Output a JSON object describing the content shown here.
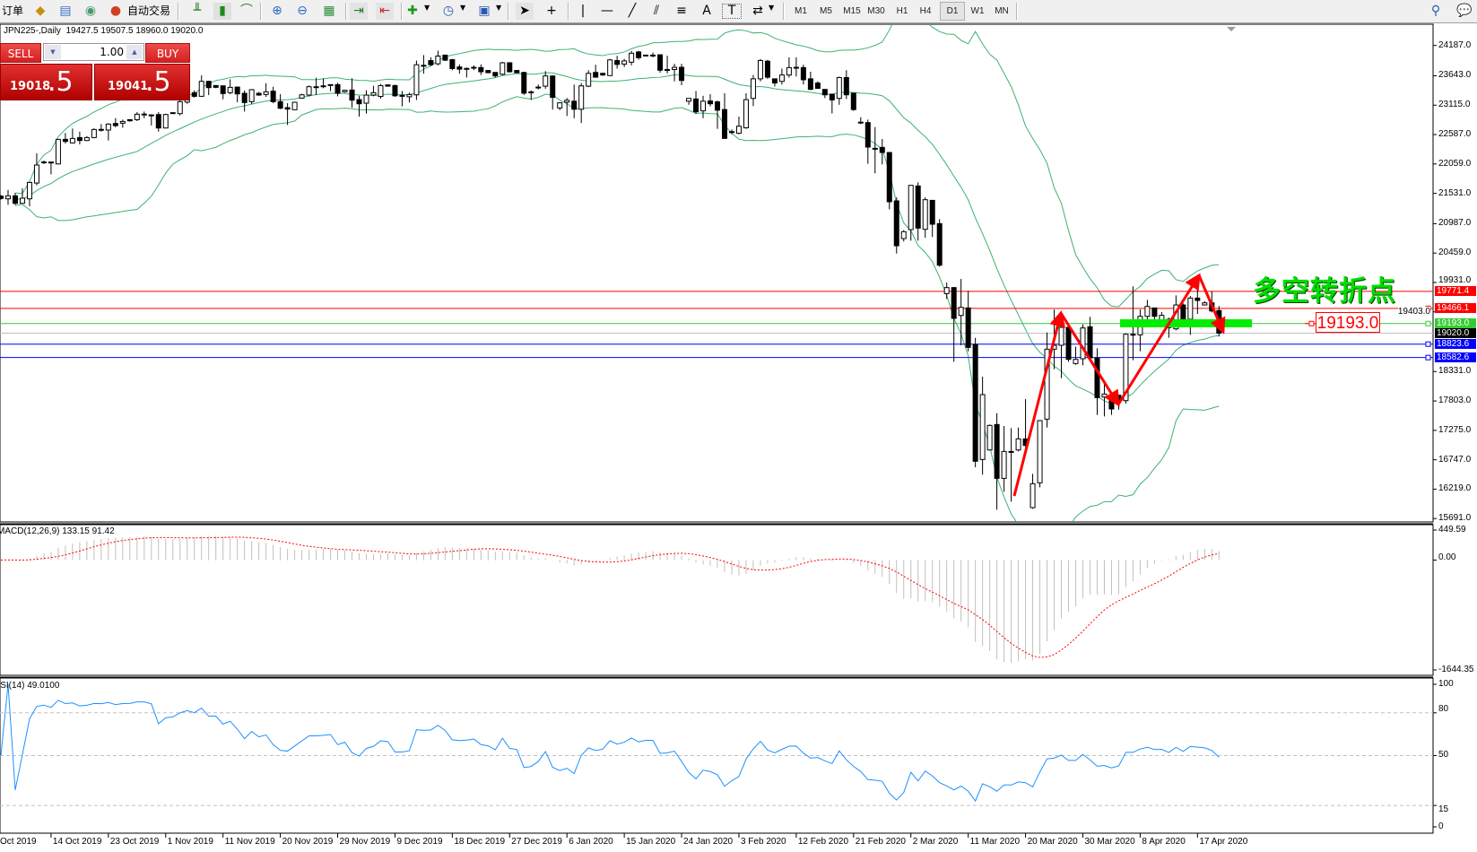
{
  "toolbar": {
    "order_label": "订单",
    "autotrade_label": "自动交易",
    "timeframes": [
      "M1",
      "M5",
      "M15",
      "M30",
      "H1",
      "H4",
      "D1",
      "W1",
      "MN"
    ],
    "active_timeframe": "D1",
    "text_tool_label": "A",
    "text_label_tool": "T"
  },
  "chart": {
    "header": "JPN225-,Daily  19427.5 19507.5 18960.0 19020.0"
  },
  "trade_panel": {
    "sell_label": "SELL",
    "buy_label": "BUY",
    "volume": "1.00",
    "sell_price_main": "19018",
    "sell_price_frac": ".5",
    "buy_price_main": "19041",
    "buy_price_frac": ".5"
  },
  "price_axis": {
    "ticks": [
      "24187.0",
      "23643.0",
      "23115.0",
      "22587.0",
      "22059.0",
      "21531.0",
      "20987.0",
      "20459.0",
      "19931.0",
      "19403.0",
      "18331.0",
      "17803.0",
      "17275.0",
      "16747.0",
      "16219.0",
      "15691.0"
    ]
  },
  "levels": [
    {
      "price": 19771.4,
      "label": "19771.4",
      "color": "#ff0000",
      "marker": false
    },
    {
      "price": 19466.1,
      "label": "19466.1",
      "color": "#ff0000",
      "marker": true
    },
    {
      "price": 19193.0,
      "label": "19193.0",
      "color": "#33cc33",
      "marker": true
    },
    {
      "price": 19020.0,
      "label": "19020.0",
      "color": "#000000",
      "line_color": "#c0c0c0",
      "marker": false
    },
    {
      "price": 18823.6,
      "label": "18823.6",
      "color": "#0000ff",
      "marker": true
    },
    {
      "price": 18582.6,
      "label": "18582.6",
      "color": "#0000ff",
      "marker": true
    }
  ],
  "annotation": {
    "text": "多空转折点",
    "price_label": "19193.0",
    "text_color": "#00dd00",
    "arrow_color": "#ff0000",
    "zone_color": "#00ee00"
  },
  "macd": {
    "label": "MACD(12,26,9) 133.15 91.42",
    "axis": [
      "449.59",
      "0.00",
      "-1644.35"
    ],
    "range": [
      -1644.35,
      449.59
    ],
    "histogram_color": "#c0c0c0",
    "signal_color": "#ff0000"
  },
  "rsi": {
    "label": "RSI(14) 49.0100",
    "axis": [
      "100",
      "80",
      "50",
      "15",
      "0"
    ],
    "levels": [
      80,
      50,
      15
    ],
    "line_color": "#1e90ff"
  },
  "chart_data": {
    "type": "candlestick",
    "symbol": "JPN225-",
    "timeframe": "Daily",
    "ylim": [
      15691.0,
      24187.0
    ],
    "bollinger_color": "#3cb371",
    "candle_format": [
      "open",
      "high",
      "low",
      "close"
    ],
    "candles": [
      [
        21480,
        21500,
        21420,
        21440
      ],
      [
        21433,
        21594,
        21325,
        21487
      ],
      [
        21487,
        21540,
        21320,
        21352
      ],
      [
        21352,
        21620,
        21352,
        21444
      ],
      [
        21433,
        21739,
        21299,
        21728
      ],
      [
        21717,
        22249,
        21675,
        22040
      ],
      [
        22090,
        22120,
        22060,
        22095
      ],
      [
        22093,
        22100,
        21873,
        22077
      ],
      [
        22060,
        22510,
        22050,
        22501
      ],
      [
        22501,
        22614,
        22426,
        22464
      ],
      [
        22437,
        22695,
        22426,
        22517
      ],
      [
        22533,
        22640,
        22410,
        22480
      ],
      [
        22480,
        22560,
        22470,
        22533
      ],
      [
        22533,
        22700,
        22520,
        22678
      ],
      [
        22680,
        22775,
        22640,
        22675
      ],
      [
        22668,
        22791,
        22480,
        22775
      ],
      [
        22786,
        22882,
        22720,
        22748
      ],
      [
        22791,
        22855,
        22710,
        22823
      ],
      [
        22855,
        22860,
        22820,
        22834
      ],
      [
        22855,
        22990,
        22829,
        22952
      ],
      [
        22950,
        23000,
        22880,
        22955
      ],
      [
        22940,
        22950,
        22750,
        22935
      ],
      [
        22947,
        22990,
        22640,
        22705
      ],
      [
        22705,
        22963,
        22695,
        22947
      ],
      [
        22980,
        22985,
        22975,
        22978
      ],
      [
        22963,
        23274,
        22930,
        23178
      ],
      [
        23170,
        23330,
        23140,
        23300
      ],
      [
        23339,
        23380,
        23250,
        23274
      ],
      [
        23274,
        23650,
        23270,
        23543
      ],
      [
        23543,
        23554,
        23296,
        23430
      ],
      [
        23468,
        23470,
        23420,
        23435
      ],
      [
        23462,
        23470,
        23220,
        23323
      ],
      [
        23339,
        23580,
        23310,
        23435
      ],
      [
        23440,
        23450,
        23167,
        23317
      ],
      [
        23328,
        23380,
        23000,
        23162
      ],
      [
        23178,
        23403,
        23135,
        23393
      ],
      [
        23328,
        23350,
        23285,
        23296
      ],
      [
        23307,
        23510,
        23264,
        23355
      ],
      [
        23366,
        23446,
        23151,
        23178
      ],
      [
        23178,
        23312,
        23044,
        23060
      ],
      [
        23070,
        23150,
        22759,
        23044
      ],
      [
        23033,
        23178,
        23028,
        23167
      ],
      [
        23242,
        23320,
        23230,
        23301
      ],
      [
        23296,
        23468,
        23274,
        23446
      ],
      [
        23440,
        23607,
        23296,
        23446
      ],
      [
        23460,
        23597,
        23419,
        23462
      ],
      [
        23484,
        23484,
        23366,
        23482
      ],
      [
        23484,
        23516,
        23274,
        23328
      ],
      [
        23355,
        23390,
        23340,
        23382
      ],
      [
        23387,
        23597,
        23070,
        23205
      ],
      [
        23215,
        23285,
        22909,
        23140
      ],
      [
        23151,
        23382,
        22963,
        23296
      ],
      [
        23296,
        23462,
        23274,
        23339
      ],
      [
        23272,
        23496,
        23232,
        23467
      ],
      [
        23479,
        23485,
        23450,
        23456
      ],
      [
        23467,
        23484,
        23266,
        23283
      ],
      [
        23290,
        23370,
        23094,
        23283
      ],
      [
        23266,
        23341,
        23163,
        23306
      ],
      [
        23300,
        23916,
        23209,
        23841
      ],
      [
        23830,
        24014,
        23680,
        23830
      ],
      [
        23916,
        23974,
        23818,
        23841
      ],
      [
        23858,
        24094,
        23830,
        23997
      ],
      [
        24014,
        24020,
        23910,
        23922
      ],
      [
        23933,
        23945,
        23743,
        23772
      ],
      [
        23801,
        23847,
        23680,
        23761
      ],
      [
        23775,
        23790,
        23611,
        23772
      ],
      [
        23795,
        23830,
        23743,
        23795
      ],
      [
        23790,
        23847,
        23657,
        23715
      ],
      [
        23738,
        23745,
        23690,
        23698
      ],
      [
        23703,
        23703,
        23611,
        23640
      ],
      [
        23669,
        23893,
        23650,
        23876
      ],
      [
        23876,
        23888,
        23700,
        23715
      ],
      [
        23738,
        23745,
        23690,
        23698
      ],
      [
        23703,
        23715,
        23300,
        23330
      ],
      [
        23353,
        23381,
        23209,
        23350
      ],
      [
        23440,
        23485,
        23398,
        23438
      ],
      [
        23456,
        23726,
        23410,
        23640
      ],
      [
        23640,
        23640,
        23036,
        23255
      ],
      [
        23065,
        23168,
        23025,
        23157
      ],
      [
        23168,
        23243,
        22921,
        23203
      ],
      [
        23186,
        23485,
        22881,
        23042
      ],
      [
        23042,
        23513,
        22795,
        23462
      ],
      [
        23456,
        23743,
        23439,
        23686
      ],
      [
        23703,
        23841,
        23611,
        23617
      ],
      [
        23686,
        23700,
        23640,
        23657
      ],
      [
        23646,
        23945,
        23640,
        23928
      ],
      [
        23916,
        24002,
        23772,
        23847
      ],
      [
        23853,
        23945,
        23801,
        23910
      ],
      [
        23887,
        24089,
        23830,
        24048
      ],
      [
        24071,
        24089,
        23933,
        23968
      ],
      [
        24014,
        24020,
        24008,
        24014
      ],
      [
        24010,
        24060,
        23974,
        24014
      ],
      [
        24020,
        24020,
        23697,
        23743
      ],
      [
        23755,
        24002,
        23686,
        23755
      ],
      [
        23755,
        23858,
        23542,
        23795
      ],
      [
        23795,
        23858,
        23473,
        23559
      ],
      [
        23186,
        23240,
        23122,
        23237
      ],
      [
        23226,
        23370,
        22956,
        22996
      ],
      [
        23013,
        23283,
        22881,
        23186
      ],
      [
        23191,
        23312,
        23094,
        23140
      ],
      [
        23174,
        23197,
        22691,
        23025
      ],
      [
        23036,
        23329,
        22518,
        22518
      ],
      [
        22638,
        22680,
        22593,
        22640
      ],
      [
        22610,
        22910,
        22593,
        22737
      ],
      [
        22708,
        23329,
        22691,
        23214
      ],
      [
        23237,
        23657,
        23099,
        23588
      ],
      [
        23588,
        23945,
        23542,
        23916
      ],
      [
        23905,
        23928,
        23588,
        23617
      ],
      [
        23588,
        23588,
        23450,
        23513
      ],
      [
        23542,
        23772,
        23485,
        23657
      ],
      [
        23657,
        23974,
        23611,
        23790
      ],
      [
        23790,
        23974,
        23629,
        23795
      ],
      [
        23790,
        23841,
        23485,
        23571
      ],
      [
        23588,
        23715,
        23387,
        23398
      ],
      [
        23513,
        23542,
        23410,
        23416
      ],
      [
        23398,
        23398,
        23243,
        23301
      ],
      [
        23312,
        23312,
        22967,
        23209
      ],
      [
        23237,
        23628,
        23122,
        23611
      ],
      [
        23611,
        23743,
        23226,
        23301
      ],
      [
        23329,
        23329,
        23013,
        23036
      ],
      [
        22810,
        22899,
        22776,
        22800
      ],
      [
        22802,
        22856,
        22062,
        22362
      ],
      [
        22340,
        22722,
        21890,
        22330
      ],
      [
        22357,
        22507,
        22051,
        22265
      ],
      [
        22265,
        22265,
        21245,
        21380
      ],
      [
        21396,
        21460,
        20451,
        20590
      ],
      [
        20719,
        20870,
        20666,
        20843
      ],
      [
        20880,
        21675,
        20682,
        21675
      ],
      [
        21664,
        21729,
        20682,
        20907
      ],
      [
        20886,
        21460,
        20735,
        21417
      ],
      [
        21406,
        21406,
        20746,
        20977
      ],
      [
        20988,
        21068,
        20214,
        20241
      ],
      [
        19731,
        19930,
        19635,
        19839
      ],
      [
        19839,
        19850,
        18507,
        19286
      ],
      [
        19339,
        19994,
        18802,
        19484
      ],
      [
        19474,
        19780,
        18695,
        18765
      ],
      [
        18819,
        18937,
        16612,
        16720
      ],
      [
        16752,
        18239,
        16478,
        17917
      ],
      [
        16923,
        17380,
        16913,
        17364
      ],
      [
        17380,
        17584,
        15850,
        16413
      ],
      [
        16413,
        17353,
        16172,
        16896
      ],
      [
        16890,
        17315,
        15995,
        16896
      ],
      [
        16923,
        17326,
        16896,
        17122
      ],
      [
        17122,
        17836,
        16923,
        17004
      ],
      [
        15887,
        16494,
        15866,
        16317
      ],
      [
        16333,
        17460,
        16252,
        17450
      ],
      [
        17476,
        19033,
        17326,
        18733
      ],
      [
        18733,
        19447,
        18373,
        18803
      ],
      [
        18803,
        19313,
        18212,
        19125
      ],
      [
        19125,
        19152,
        18507,
        18550
      ],
      [
        18475,
        18776,
        18454,
        18550
      ],
      [
        18561,
        19179,
        18443,
        19114
      ],
      [
        19136,
        19313,
        18561,
        18577
      ],
      [
        18577,
        18749,
        17552,
        17863
      ],
      [
        17874,
        18131,
        17525,
        17927
      ],
      [
        17890,
        17906,
        17552,
        17659
      ],
      [
        17906,
        17906,
        17648,
        17809
      ],
      [
        17809,
        19017,
        17756,
        19001
      ],
      [
        19000,
        19860,
        18534,
        19001
      ],
      [
        18990,
        19447,
        18695,
        19323
      ],
      [
        19323,
        19619,
        19270,
        19500
      ],
      [
        19474,
        19474,
        19259,
        19323
      ],
      [
        19259,
        19400,
        19200,
        19340
      ],
      [
        19270,
        19300,
        18937,
        19120
      ],
      [
        19098,
        19699,
        19071,
        19527
      ],
      [
        19527,
        19554,
        19232,
        19259
      ],
      [
        19270,
        19688,
        18990,
        19651
      ],
      [
        19651,
        19930,
        19366,
        19608
      ],
      [
        19527,
        19597,
        19517,
        19565
      ],
      [
        19565,
        19769,
        19393,
        19420
      ],
      [
        19427.5,
        19507.5,
        18960,
        19020
      ]
    ],
    "date_labels": [
      {
        "bar": -1,
        "label": "Oct 2019"
      },
      {
        "bar": 7,
        "label": "14 Oct 2019"
      },
      {
        "bar": 15,
        "label": "23 Oct 2019"
      },
      {
        "bar": 23,
        "label": "1 Nov 2019"
      },
      {
        "bar": 31,
        "label": "11 Nov 2019"
      },
      {
        "bar": 39,
        "label": "20 Nov 2019"
      },
      {
        "bar": 47,
        "label": "29 Nov 2019"
      },
      {
        "bar": 55,
        "label": "9 Dec 2019"
      },
      {
        "bar": 63,
        "label": "18 Dec 2019"
      },
      {
        "bar": 71,
        "label": "27 Dec 2019"
      },
      {
        "bar": 79,
        "label": "6 Jan 2020"
      },
      {
        "bar": 87,
        "label": "15 Jan 2020"
      },
      {
        "bar": 95,
        "label": "24 Jan 2020"
      },
      {
        "bar": 103,
        "label": "3 Feb 2020"
      },
      {
        "bar": 111,
        "label": "12 Feb 2020"
      },
      {
        "bar": 119,
        "label": "21 Feb 2020"
      },
      {
        "bar": 127,
        "label": "2 Mar 2020"
      },
      {
        "bar": 135,
        "label": "11 Mar 2020"
      },
      {
        "bar": 143,
        "label": "20 Mar 2020"
      },
      {
        "bar": 151,
        "label": "30 Mar 2020"
      },
      {
        "bar": 159,
        "label": "8 Apr 2020"
      },
      {
        "bar": 167,
        "label": "17 Apr 2020"
      }
    ]
  }
}
